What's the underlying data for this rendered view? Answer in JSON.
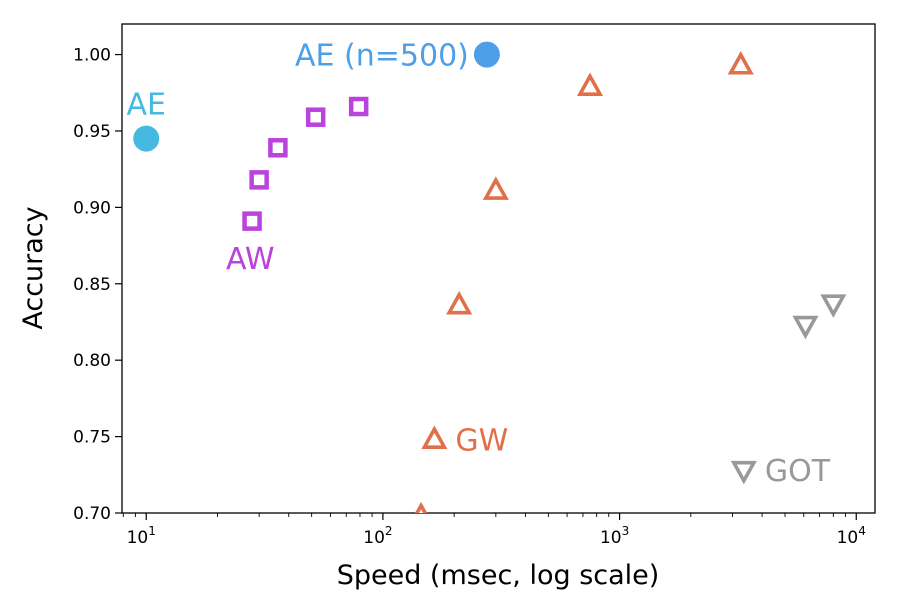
{
  "colors": {
    "ae": "#45b9e0",
    "ae_n500": "#4d9fe8",
    "aw": "#b943dc",
    "gw": "#e0704a",
    "got": "#999999"
  },
  "chart_data": {
    "type": "scatter",
    "title": "",
    "xlabel": "Speed (msec, log scale)",
    "ylabel": "Accuracy",
    "xscale": "log",
    "xlim": [
      7.9,
      12000
    ],
    "ylim": [
      0.7,
      1.02
    ],
    "xtick_labels": [
      {
        "value": 10,
        "base": "10",
        "exp": "1"
      },
      {
        "value": 100,
        "base": "10",
        "exp": "2"
      },
      {
        "value": 1000,
        "base": "10",
        "exp": "3"
      },
      {
        "value": 10000,
        "base": "10",
        "exp": "4"
      }
    ],
    "yticks": [
      0.7,
      0.75,
      0.8,
      0.85,
      0.9,
      0.95,
      1.0
    ],
    "ytick_labels": [
      "0.70",
      "0.75",
      "0.80",
      "0.85",
      "0.90",
      "0.95",
      "1.00"
    ],
    "series": [
      {
        "name": "AE",
        "marker": "circle",
        "color": "#45b9e0",
        "points": [
          {
            "x": 10,
            "y": 0.945
          }
        ]
      },
      {
        "name": "AE (n=500)",
        "marker": "circle",
        "color": "#4d9fe8",
        "points": [
          {
            "x": 275,
            "y": 1.0
          }
        ]
      },
      {
        "name": "AW",
        "marker": "square",
        "color": "#b943dc",
        "points": [
          {
            "x": 28,
            "y": 0.891
          },
          {
            "x": 30,
            "y": 0.918
          },
          {
            "x": 36,
            "y": 0.939
          },
          {
            "x": 52,
            "y": 0.959
          },
          {
            "x": 79,
            "y": 0.966
          }
        ]
      },
      {
        "name": "GW",
        "marker": "triangle-up",
        "color": "#e0704a",
        "points": [
          {
            "x": 145,
            "y": 0.698
          },
          {
            "x": 165,
            "y": 0.748
          },
          {
            "x": 210,
            "y": 0.836
          },
          {
            "x": 300,
            "y": 0.911
          },
          {
            "x": 750,
            "y": 0.979
          },
          {
            "x": 3250,
            "y": 0.993
          }
        ]
      },
      {
        "name": "GOT",
        "marker": "triangle-down",
        "color": "#999999",
        "points": [
          {
            "x": 3350,
            "y": 0.728
          },
          {
            "x": 6100,
            "y": 0.823
          },
          {
            "x": 8000,
            "y": 0.837
          }
        ]
      }
    ],
    "annotations": [
      {
        "text": "AE",
        "series": "AE",
        "anchor": "above-center"
      },
      {
        "text": "AE (n=500)",
        "series": "AE (n=500)",
        "anchor": "left"
      },
      {
        "text": "AW",
        "series": "AW",
        "anchor": "below-left"
      },
      {
        "text": "GW",
        "series": "GW",
        "anchor": "right"
      },
      {
        "text": "GOT",
        "series": "GOT",
        "anchor": "right"
      }
    ]
  }
}
